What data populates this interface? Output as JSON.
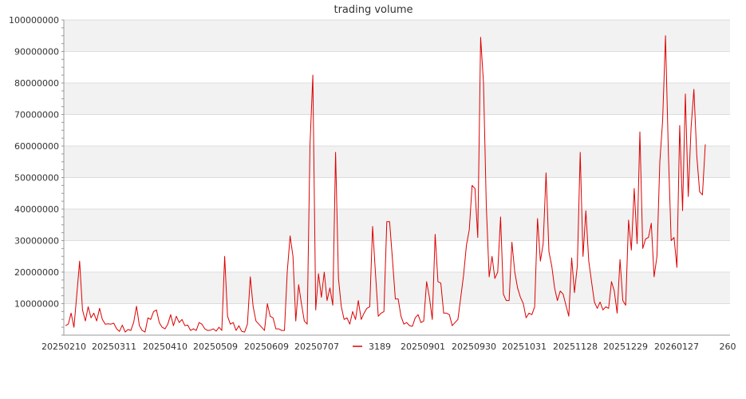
{
  "chart_data": {
    "type": "line",
    "title": "trading volume",
    "xlabel": "",
    "ylabel": "",
    "ylim": [
      0,
      100000000
    ],
    "y_ticks": [
      "10000000",
      "20000000",
      "30000000",
      "40000000",
      "50000000",
      "60000000",
      "70000000",
      "80000000",
      "90000000",
      "100000000"
    ],
    "x_tick_labels": [
      "20250210",
      "20250311",
      "20250410",
      "20250509",
      "20250609",
      "20250707",
      "20250901",
      "20250930",
      "20251031",
      "20251128",
      "20251229",
      "20260127",
      "260"
    ],
    "grid": "horizontal",
    "background_bands": "alternating",
    "legend_position": "bottom",
    "colors": {
      "series": "#dd0000",
      "band": "#f2f2f2",
      "grid": "#dddddd",
      "axis": "#999999"
    },
    "series": [
      {
        "name": "3189",
        "values": [
          3000000,
          3500000,
          7000000,
          2500000,
          13000000,
          23500000,
          8000000,
          4500000,
          9000000,
          5500000,
          7000000,
          4500000,
          8500000,
          5000000,
          3500000,
          3600000,
          3500000,
          3800000,
          2000000,
          1200000,
          3200000,
          1000000,
          1800000,
          1500000,
          4000000,
          9200000,
          3000000,
          1500000,
          1000000,
          5500000,
          5000000,
          7500000,
          8000000,
          4000000,
          2500000,
          2000000,
          3500000,
          6500000,
          3000000,
          6000000,
          4000000,
          5000000,
          3000000,
          3200000,
          1500000,
          2000000,
          1500000,
          4000000,
          3500000,
          2000000,
          1500000,
          1600000,
          2000000,
          1300000,
          2500000,
          1500000,
          25000000,
          6000000,
          3500000,
          4000000,
          1500000,
          3000000,
          1200000,
          1000000,
          3500000,
          18500000,
          9000000,
          4500000,
          3500000,
          2500000,
          1500000,
          10000000,
          6000000,
          5500000,
          2000000,
          2000000,
          1500000,
          1500000,
          20000000,
          31500000,
          25000000,
          4500000,
          16000000,
          10000000,
          4500000,
          3500000,
          60000000,
          82500000,
          8000000,
          19500000,
          12000000,
          20000000,
          11000000,
          15000000,
          9500000,
          58000000,
          18000000,
          9000000,
          5000000,
          5500000,
          3500000,
          7500000,
          5000000,
          11000000,
          5000000,
          7000000,
          8500000,
          9000000,
          34500000,
          20000000,
          6000000,
          7000000,
          7500000,
          36000000,
          36000000,
          24000000,
          11500000,
          11500000,
          6000000,
          3500000,
          4000000,
          3000000,
          2800000,
          5500000,
          6500000,
          4000000,
          4500000,
          17000000,
          12000000,
          5000000,
          32000000,
          17000000,
          16500000,
          7000000,
          7000000,
          6500000,
          3000000,
          4000000,
          5000000,
          12000000,
          19000000,
          28500000,
          33500000,
          47500000,
          46500000,
          31000000,
          94500000,
          80000000,
          41000000,
          18500000,
          25000000,
          18000000,
          20000000,
          37500000,
          13000000,
          11000000,
          11000000,
          29500000,
          20000000,
          15000000,
          12000000,
          10000000,
          5500000,
          7000000,
          6500000,
          9000000,
          37000000,
          23500000,
          29000000,
          51500000,
          26500000,
          22000000,
          15000000,
          11000000,
          14000000,
          13000000,
          9500000,
          6000000,
          24500000,
          13500000,
          22000000,
          58000000,
          25000000,
          39500000,
          23500000,
          17000000,
          10500000,
          8500000,
          10500000,
          8000000,
          9000000,
          8500000,
          17000000,
          14000000,
          7000000,
          24000000,
          11000000,
          9500000,
          36500000,
          27000000,
          46500000,
          29000000,
          64500000,
          27500000,
          30500000,
          31000000,
          35500000,
          18500000,
          25000000,
          55000000,
          68000000,
          95000000,
          58000000,
          30000000,
          31000000,
          21500000,
          66500000,
          39500000,
          76500000,
          44000000,
          66000000,
          78000000,
          57000000,
          45500000,
          44500000,
          60500000
        ]
      }
    ]
  }
}
